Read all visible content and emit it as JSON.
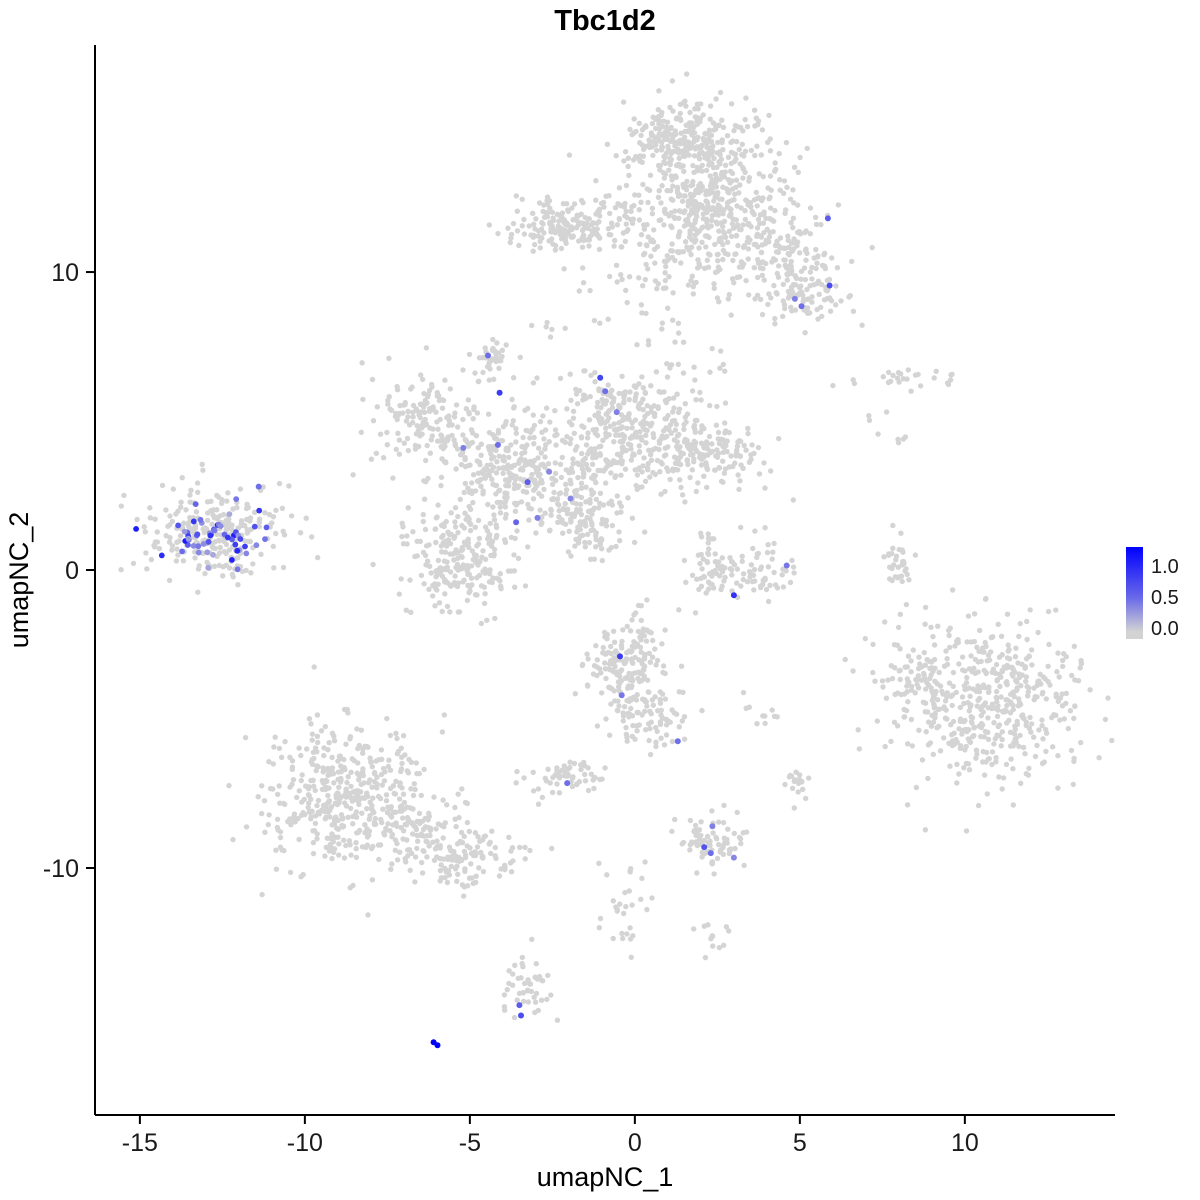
{
  "figure": {
    "title": "Tbc1d2",
    "xlabel": "umapNC_1",
    "ylabel": "umapNC_2"
  },
  "chart_data": {
    "type": "scatter",
    "title": "Tbc1d2",
    "xlabel": "umapNC_1",
    "ylabel": "umapNC_2",
    "xlim": [
      -16.36,
      14.55
    ],
    "ylim": [
      -18.29,
      17.62
    ],
    "xticks": [
      -15,
      -10,
      -5,
      0,
      5,
      10
    ],
    "yticks": [
      10,
      0,
      -10
    ],
    "grid": false,
    "background": "#ffffff",
    "point_color_low": "#d3d3d3",
    "point_color_high": "#0000ff",
    "grey_point_color": "#d4d4d4",
    "legend": {
      "labels": [
        "1.0",
        "0.5",
        "0.0"
      ],
      "max_value": 1.25,
      "position": "right"
    },
    "grey_clusters": [
      {
        "name": "top-core",
        "cx": 1.9,
        "cy": 13.9,
        "sx": 1.05,
        "sy": 0.85,
        "n": 300
      },
      {
        "name": "top-core-left",
        "cx": 1.0,
        "cy": 14.6,
        "sx": 0.6,
        "sy": 0.5,
        "n": 80
      },
      {
        "name": "top-mid",
        "cx": 2.3,
        "cy": 12.2,
        "sx": 1.2,
        "sy": 0.8,
        "n": 200
      },
      {
        "name": "top-right-arm",
        "cx": 3.9,
        "cy": 10.9,
        "sx": 0.95,
        "sy": 0.9,
        "n": 170
      },
      {
        "name": "top-right-tip",
        "cx": 5.0,
        "cy": 9.4,
        "sx": 0.65,
        "sy": 0.6,
        "n": 100
      },
      {
        "name": "top-left-arm",
        "cx": -2.3,
        "cy": 11.5,
        "sx": 0.75,
        "sy": 0.45,
        "n": 150
      },
      {
        "name": "top-left-bridge",
        "cx": -0.7,
        "cy": 11.6,
        "sx": 0.9,
        "sy": 0.5,
        "n": 70
      },
      {
        "name": "top-lower-sparse",
        "cx": 1.3,
        "cy": 10.3,
        "sx": 1.1,
        "sy": 0.9,
        "n": 70
      },
      {
        "name": "top-below-sparse",
        "cx": 0.4,
        "cy": 9.0,
        "sx": 0.9,
        "sy": 1.0,
        "n": 35
      },
      {
        "name": "left-island-grey",
        "cx": -12.7,
        "cy": 1.2,
        "sx": 1.05,
        "sy": 0.7,
        "n": 210
      },
      {
        "name": "left-island-halo",
        "cx": -12.4,
        "cy": 1.4,
        "sx": 1.6,
        "sy": 1.05,
        "n": 45
      },
      {
        "name": "center-core",
        "cx": -3.8,
        "cy": 3.3,
        "sx": 1.1,
        "sy": 0.95,
        "n": 300
      },
      {
        "name": "center-lower-blob",
        "cx": -5.3,
        "cy": 0.4,
        "sx": 0.85,
        "sy": 0.9,
        "n": 230
      },
      {
        "name": "center-upper-arm",
        "cx": -6.5,
        "cy": 5.0,
        "sx": 0.7,
        "sy": 0.8,
        "n": 140
      },
      {
        "name": "center-top-knob",
        "cx": -4.4,
        "cy": 7.1,
        "sx": 0.33,
        "sy": 0.4,
        "n": 40
      },
      {
        "name": "center-right-arm",
        "cx": 0.4,
        "cy": 4.1,
        "sx": 1.6,
        "sy": 0.7,
        "n": 290
      },
      {
        "name": "center-right-tip",
        "cx": 2.4,
        "cy": 4.0,
        "sx": 0.7,
        "sy": 0.5,
        "n": 70
      },
      {
        "name": "center-diag-streak",
        "cx": -1.9,
        "cy": 2.2,
        "sx": 0.6,
        "sy": 0.7,
        "n": 90
      },
      {
        "name": "center-tail",
        "cx": -1.2,
        "cy": 1.2,
        "sx": 0.6,
        "sy": 0.6,
        "n": 60
      },
      {
        "name": "center-top-sparse",
        "cx": -0.7,
        "cy": 5.7,
        "sx": 0.9,
        "sy": 0.6,
        "n": 80
      },
      {
        "name": "center-upper-sparse",
        "cx": 0.3,
        "cy": 5.3,
        "sx": 1.2,
        "sy": 0.5,
        "n": 50
      },
      {
        "name": "mid-right-crescent",
        "cx": 3.3,
        "cy": -0.1,
        "sx": 0.85,
        "sy": 0.55,
        "n": 95
      },
      {
        "name": "mid-right-tip",
        "cx": 2.3,
        "cy": 0.4,
        "sx": 0.3,
        "sy": 0.4,
        "n": 20
      },
      {
        "name": "right-streak",
        "cx": 8.0,
        "cy": 0.2,
        "sx": 0.2,
        "sy": 0.55,
        "n": 35
      },
      {
        "name": "top-right-sparse",
        "cx": 8.7,
        "cy": 6.5,
        "sx": 1.05,
        "sy": 0.22,
        "n": 26
      },
      {
        "name": "right-dots",
        "cx": 7.6,
        "cy": 4.6,
        "sx": 0.3,
        "sy": 0.4,
        "n": 8
      },
      {
        "name": "bottom-right-big",
        "cx": 10.6,
        "cy": -4.4,
        "sx": 1.45,
        "sy": 1.4,
        "n": 500
      },
      {
        "name": "bottom-right-edge",
        "cx": 8.4,
        "cy": -3.6,
        "sx": 0.4,
        "sy": 0.8,
        "n": 40
      },
      {
        "name": "bottom-left-big",
        "cx": -8.7,
        "cy": -7.5,
        "sx": 1.25,
        "sy": 1.2,
        "n": 430
      },
      {
        "name": "bottom-left-tail",
        "cx": -5.4,
        "cy": -9.6,
        "sx": 0.9,
        "sy": 0.55,
        "n": 130
      },
      {
        "name": "bottom-left-bridge",
        "cx": -6.7,
        "cy": -8.7,
        "sx": 0.7,
        "sy": 0.6,
        "n": 70
      },
      {
        "name": "center-bottom-upper",
        "cx": -0.3,
        "cy": -3.3,
        "sx": 0.6,
        "sy": 0.75,
        "n": 150
      },
      {
        "name": "center-bottom-lower",
        "cx": 0.4,
        "cy": -4.8,
        "sx": 0.55,
        "sy": 0.65,
        "n": 90
      },
      {
        "name": "center-bottom-sparse",
        "cx": 0.2,
        "cy": -1.8,
        "sx": 0.4,
        "sy": 0.5,
        "n": 14
      },
      {
        "name": "small-center-island",
        "cx": -2.1,
        "cy": -6.9,
        "sx": 0.55,
        "sy": 0.32,
        "n": 60
      },
      {
        "name": "small-lower-right",
        "cx": 2.5,
        "cy": -9.1,
        "sx": 0.5,
        "sy": 0.5,
        "n": 75
      },
      {
        "name": "bottom-trail",
        "cx": -0.3,
        "cy": -11.3,
        "sx": 0.45,
        "sy": 1.0,
        "n": 30
      },
      {
        "name": "bottom-trail-right",
        "cx": 2.4,
        "cy": -12.3,
        "sx": 0.35,
        "sy": 0.25,
        "n": 12
      },
      {
        "name": "bottom-small-island",
        "cx": -3.3,
        "cy": -14.1,
        "sx": 0.35,
        "sy": 0.65,
        "n": 45
      },
      {
        "name": "right-small-blob",
        "cx": 4.85,
        "cy": -7.1,
        "sx": 0.18,
        "sy": 0.28,
        "n": 18
      },
      {
        "name": "right-sparse-dots",
        "cx": 3.9,
        "cy": -4.9,
        "sx": 0.3,
        "sy": 0.5,
        "n": 10
      },
      {
        "name": "gap-sparse",
        "cx": 1.6,
        "cy": 6.8,
        "sx": 0.7,
        "sy": 0.5,
        "n": 18
      },
      {
        "name": "left-arm-dots",
        "cx": -2.6,
        "cy": 8.5,
        "sx": 0.3,
        "sy": 0.4,
        "n": 6
      }
    ],
    "expressing_clusters": [
      {
        "name": "left-island-expressing",
        "cx": -12.6,
        "cy": 1.15,
        "sx": 0.85,
        "sy": 0.5,
        "n": 55,
        "vmin": 0.25,
        "vmax": 1.1
      }
    ],
    "expressing_points": [
      [
        5.85,
        11.8,
        0.7
      ],
      [
        5.9,
        9.55,
        0.8
      ],
      [
        5.05,
        8.85,
        0.6
      ],
      [
        4.85,
        9.1,
        0.5
      ],
      [
        -11.4,
        2.8,
        0.6
      ],
      [
        -4.45,
        7.2,
        0.6
      ],
      [
        -4.1,
        5.95,
        0.9
      ],
      [
        -1.05,
        6.45,
        0.85
      ],
      [
        -0.9,
        6.0,
        0.6
      ],
      [
        -0.55,
        5.3,
        0.5
      ],
      [
        -5.2,
        4.1,
        0.5
      ],
      [
        -4.15,
        4.2,
        0.6
      ],
      [
        -3.25,
        2.95,
        0.7
      ],
      [
        -2.6,
        3.3,
        0.45
      ],
      [
        -3.6,
        1.6,
        0.65
      ],
      [
        -2.95,
        1.75,
        0.5
      ],
      [
        -1.95,
        2.4,
        0.45
      ],
      [
        4.6,
        0.15,
        0.55
      ],
      [
        3.0,
        -0.85,
        0.95
      ],
      [
        -0.45,
        -2.9,
        0.9
      ],
      [
        -0.4,
        -4.2,
        0.55
      ],
      [
        1.3,
        -5.75,
        0.6
      ],
      [
        -2.05,
        -7.15,
        0.6
      ],
      [
        2.35,
        -8.6,
        0.5
      ],
      [
        2.1,
        -9.3,
        0.75
      ],
      [
        2.3,
        -9.5,
        0.6
      ],
      [
        3.0,
        -9.65,
        0.45
      ],
      [
        -3.5,
        -14.6,
        0.7
      ],
      [
        -3.45,
        -14.95,
        0.8
      ],
      [
        -6.1,
        -15.85,
        1.3
      ],
      [
        -5.98,
        -15.95,
        1.25
      ]
    ]
  }
}
